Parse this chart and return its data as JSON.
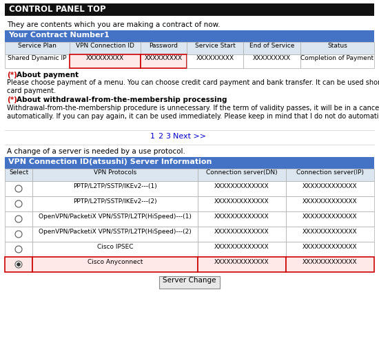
{
  "title": "CONTROL PANEL TOP",
  "subtitle": "They are contents which you are making a contract of now.",
  "contract_header": "Your Contract Number1",
  "contract_cols": [
    "Service Plan",
    "VPN Connection ID",
    "Password",
    "Service Start",
    "End of Service",
    "Status"
  ],
  "contract_row": [
    "Shared Dynamic IP",
    "XXXXXXXXX",
    "XXXXXXXXX",
    "XXXXXXXXX",
    "XXXXXXXXX",
    "Completion of Payment"
  ],
  "contract_red_cols": [
    1,
    2
  ],
  "payment_star": "(*)",
  "payment_head": "About payment",
  "payment_text": "Please choose payment of a menu. You can choose credit card payment and bank transfer. It can be used shortly after being credit\ncard payment.",
  "withdrawal_star": "(*)",
  "withdrawal_head": "About withdrawal-from-the-membership processing",
  "withdrawal_text": "Withdrawal-from-the-membership procedure is unnecessary. If the term of validity passes, it will be in a cancellation state\nautomatically. If you can pay again, it can be used immediately. Please keep in mind that I do not do automatic updating.",
  "page_nums": [
    "1",
    "2",
    "3"
  ],
  "page_next": "Next >>",
  "server_note": "A change of a server is needed by a use protocol.",
  "server_header": "VPN Connection ID(atsushi) Server Information",
  "server_cols": [
    "Select",
    "VPN Protocols",
    "Connection server(DN)",
    "Connection server(IP)"
  ],
  "server_rows": [
    [
      "PPTP/L2TP/SSTP/IKEv2---(1)",
      "XXXXXXXXXXXXX",
      "XXXXXXXXXXXXX"
    ],
    [
      "PPTP/L2TP/SSTP/IKEv2---(2)",
      "XXXXXXXXXXXXX",
      "XXXXXXXXXXXXX"
    ],
    [
      "OpenVPN/PacketiX VPN/SSTP/L2TP(HiSpeed)---(1)",
      "XXXXXXXXXXXXX",
      "XXXXXXXXXXXXX"
    ],
    [
      "OpenVPN/PacketiX VPN/SSTP/L2TP(HiSpeed)---(2)",
      "XXXXXXXXXXXXX",
      "XXXXXXXXXXXXX"
    ],
    [
      "Cisco IPSEC",
      "XXXXXXXXXXXXX",
      "XXXXXXXXXXXXX"
    ],
    [
      "Cisco Anyconnect",
      "XXXXXXXXXXXXX",
      "XXXXXXXXXXXXX"
    ]
  ],
  "selected_row": 5,
  "button_label": "Server Change",
  "bg_color": "#ffffff",
  "header_bg": "#111111",
  "header_fg": "#ffffff",
  "table_header_bg": "#4472c4",
  "table_header_fg": "#ffffff",
  "col_header_bg": "#dce6f1",
  "table_border": "#aaaaaa",
  "red_border": "#cc0000",
  "red_fill": "#ffe8e8",
  "selected_row_bg": "#ffe8e8",
  "link_color": "#0000cc",
  "red_star_color": "#cc0000",
  "separator_color": "#cccccc",
  "btn_bg": "#e8e8e8",
  "btn_border": "#888888"
}
